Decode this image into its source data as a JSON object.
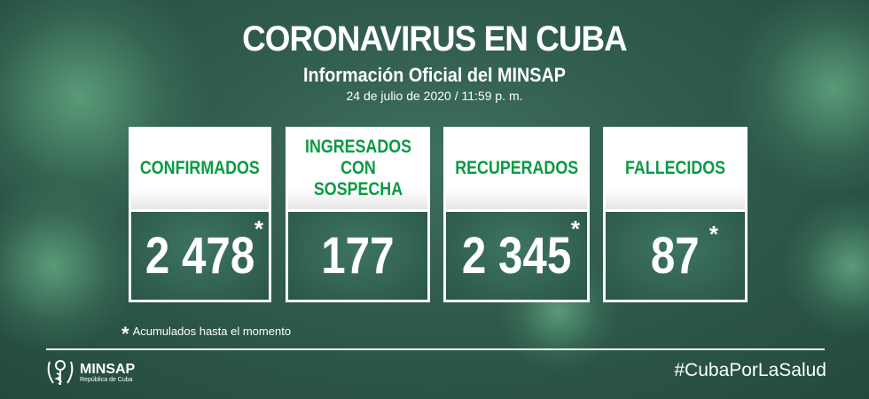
{
  "header": {
    "title": "CORONAVIRUS EN CUBA",
    "subtitle": "Información Oficial del MINSAP",
    "date": "24 de julio de 2020 / 11:59 p. m."
  },
  "cards": [
    {
      "label": "CONFIRMADOS",
      "value": "2 478",
      "starred": true
    },
    {
      "label": "INGRESADOS CON SOSPECHA",
      "value": "177",
      "starred": false
    },
    {
      "label": "RECUPERADOS",
      "value": "2 345",
      "starred": true
    },
    {
      "label": "FALLECIDOS",
      "value": "87",
      "starred": true
    }
  ],
  "footnote": {
    "mark": "*",
    "text": "Acumulados hasta el momento"
  },
  "logo": {
    "name": "MINSAP",
    "subtitle": "República de Cuba"
  },
  "hashtag": "#CubaPorLaSalud",
  "colors": {
    "accent": "#0b9a43",
    "background": "#2f5a4c"
  }
}
